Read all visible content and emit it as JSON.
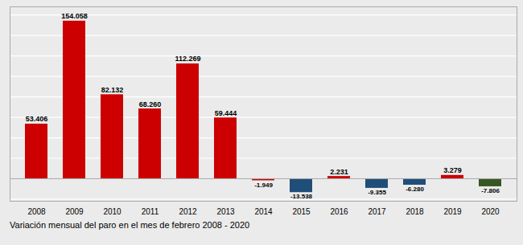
{
  "chart_data": {
    "type": "bar",
    "title": "Variación mensual del paro en el mes de febrero 2008 - 2020",
    "categories": [
      "2008",
      "2009",
      "2010",
      "2011",
      "2012",
      "2013",
      "2014",
      "2015",
      "2016",
      "2017",
      "2018",
      "2019",
      "2020"
    ],
    "values": [
      53406,
      154058,
      82132,
      68260,
      112269,
      59444,
      -1949,
      -13538,
      2231,
      -9355,
      -6280,
      3279,
      -7806
    ],
    "value_labels": [
      "53.406",
      "154.058",
      "82.132",
      "68.260",
      "112.269",
      "59.444",
      "-1.949",
      "-13.538",
      "2.231",
      "-9.355",
      "-6.280",
      "3.279",
      "-7.806"
    ],
    "colors": [
      "#cc0000",
      "#cc0000",
      "#cc0000",
      "#cc0000",
      "#cc0000",
      "#cc0000",
      "#cc0000",
      "#1f4e79",
      "#cc0000",
      "#1f4e79",
      "#1f4e79",
      "#cc0000",
      "#375623"
    ],
    "ylim": [
      -22000,
      168000
    ],
    "yticks": [
      -20000,
      0,
      20000,
      40000,
      60000,
      80000,
      100000,
      120000,
      140000,
      160000
    ],
    "grid": true,
    "data_labels": true,
    "tick_labels": "x"
  }
}
